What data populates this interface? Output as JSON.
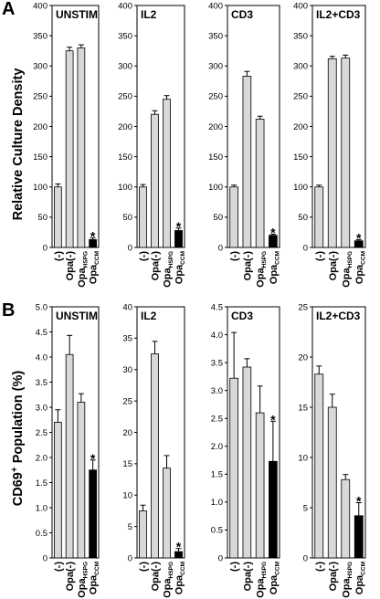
{
  "figure": {
    "rows": [
      {
        "letter": "A",
        "ylabel": "Relative Culture Density"
      },
      {
        "letter": "B",
        "ylabel_main": "CD69",
        "ylabel_sup": "+",
        "ylabel_rest": " Population (%)"
      }
    ]
  },
  "chart_data": [
    {
      "type": "bar",
      "row": 0,
      "col": 0,
      "title": "UNSTIM",
      "categories": [
        "(-)",
        "Opa(-)",
        "OpaHSPG",
        "OpaCCM"
      ],
      "values": [
        100,
        325,
        330,
        13
      ],
      "errors": [
        5,
        6,
        5,
        3
      ],
      "significant": [
        false,
        false,
        false,
        true
      ],
      "bar_colors": [
        "#d8d8d8",
        "#d8d8d8",
        "#d8d8d8",
        "#000000"
      ],
      "ylim": [
        0,
        400
      ],
      "yticks": [
        0,
        50,
        100,
        150,
        200,
        250,
        300,
        350,
        400
      ]
    },
    {
      "type": "bar",
      "row": 0,
      "col": 1,
      "title": "IL2",
      "categories": [
        "(-)",
        "Opa(-)",
        "OpaHSPG",
        "OpaCCM"
      ],
      "values": [
        100,
        220,
        245,
        28
      ],
      "errors": [
        4,
        6,
        6,
        4
      ],
      "significant": [
        false,
        false,
        false,
        true
      ],
      "bar_colors": [
        "#d8d8d8",
        "#d8d8d8",
        "#d8d8d8",
        "#000000"
      ],
      "ylim": [
        0,
        400
      ],
      "yticks": [
        0,
        50,
        100,
        150,
        200,
        250,
        300,
        350,
        400
      ]
    },
    {
      "type": "bar",
      "row": 0,
      "col": 2,
      "title": "CD3",
      "categories": [
        "(-)",
        "Opa(-)",
        "OpaHSPG",
        "OpaCCM"
      ],
      "values": [
        100,
        283,
        212,
        20
      ],
      "errors": [
        3,
        8,
        5,
        2
      ],
      "significant": [
        false,
        false,
        false,
        true
      ],
      "bar_colors": [
        "#d8d8d8",
        "#d8d8d8",
        "#d8d8d8",
        "#000000"
      ],
      "ylim": [
        0,
        400
      ],
      "yticks": [
        0,
        50,
        100,
        150,
        200,
        250,
        300,
        350,
        400
      ]
    },
    {
      "type": "bar",
      "row": 0,
      "col": 3,
      "title": "IL2+CD3",
      "categories": [
        "(-)",
        "Opa(-)",
        "OpaHSPG",
        "OpaCCM"
      ],
      "values": [
        100,
        312,
        313,
        11
      ],
      "errors": [
        3,
        4,
        5,
        2
      ],
      "significant": [
        false,
        false,
        false,
        true
      ],
      "bar_colors": [
        "#d8d8d8",
        "#d8d8d8",
        "#d8d8d8",
        "#000000"
      ],
      "ylim": [
        0,
        400
      ],
      "yticks": [
        0,
        50,
        100,
        150,
        200,
        250,
        300,
        350,
        400
      ]
    },
    {
      "type": "bar",
      "row": 1,
      "col": 0,
      "title": "UNSTIM",
      "categories": [
        "(-)",
        "Opa(-)",
        "OpaHSPG",
        "OpaCCM"
      ],
      "values": [
        2.7,
        4.05,
        3.1,
        1.75
      ],
      "errors": [
        0.25,
        0.38,
        0.17,
        0.2
      ],
      "significant": [
        false,
        false,
        false,
        true
      ],
      "bar_colors": [
        "#d8d8d8",
        "#d8d8d8",
        "#d8d8d8",
        "#000000"
      ],
      "ylim": [
        0,
        5
      ],
      "yticks": [
        0,
        0.5,
        1.0,
        1.5,
        2.0,
        2.5,
        3.0,
        3.5,
        4.0,
        4.5,
        5.0
      ],
      "ytick_labels": [
        "0",
        "0.5",
        "1.0",
        "1.5",
        "2.0",
        "2.5",
        "3.0",
        "3.5",
        "4.0",
        "4.5",
        "5.0"
      ]
    },
    {
      "type": "bar",
      "row": 1,
      "col": 1,
      "title": "IL2",
      "categories": [
        "(-)",
        "Opa(-)",
        "OpaHSPG",
        "OpaCCM"
      ],
      "values": [
        7.5,
        32.5,
        14.3,
        1.0
      ],
      "errors": [
        0.9,
        2.0,
        2.0,
        0.5
      ],
      "significant": [
        false,
        false,
        false,
        true
      ],
      "bar_colors": [
        "#d8d8d8",
        "#d8d8d8",
        "#d8d8d8",
        "#000000"
      ],
      "ylim": [
        0,
        40
      ],
      "yticks": [
        0,
        5,
        10,
        15,
        20,
        25,
        30,
        35,
        40
      ]
    },
    {
      "type": "bar",
      "row": 1,
      "col": 2,
      "title": "CD3",
      "categories": [
        "(-)",
        "Opa(-)",
        "OpaHSPG",
        "OpaCCM"
      ],
      "values": [
        3.22,
        3.42,
        2.6,
        1.73
      ],
      "errors": [
        0.82,
        0.15,
        0.48,
        0.72
      ],
      "significant": [
        false,
        false,
        false,
        true
      ],
      "bar_colors": [
        "#d8d8d8",
        "#d8d8d8",
        "#d8d8d8",
        "#000000"
      ],
      "ylim": [
        0,
        4.5
      ],
      "yticks": [
        0,
        0.5,
        1.0,
        1.5,
        2.0,
        2.5,
        3.0,
        3.5,
        4.0,
        4.5
      ],
      "ytick_labels": [
        "0",
        "0.5",
        "1.0",
        "1.5",
        "2.0",
        "2.5",
        "3.0",
        "3.5",
        "4.0",
        "4.5"
      ]
    },
    {
      "type": "bar",
      "row": 1,
      "col": 3,
      "title": "IL2+CD3",
      "categories": [
        "(-)",
        "Opa(-)",
        "OpaHSPG",
        "OpaCCM"
      ],
      "values": [
        18.3,
        15.0,
        7.8,
        4.2
      ],
      "errors": [
        0.8,
        1.3,
        0.5,
        1.3
      ],
      "significant": [
        false,
        false,
        false,
        true
      ],
      "bar_colors": [
        "#d8d8d8",
        "#d8d8d8",
        "#d8d8d8",
        "#000000"
      ],
      "ylim": [
        0,
        25
      ],
      "yticks": [
        0,
        5,
        10,
        15,
        20,
        25
      ]
    }
  ]
}
